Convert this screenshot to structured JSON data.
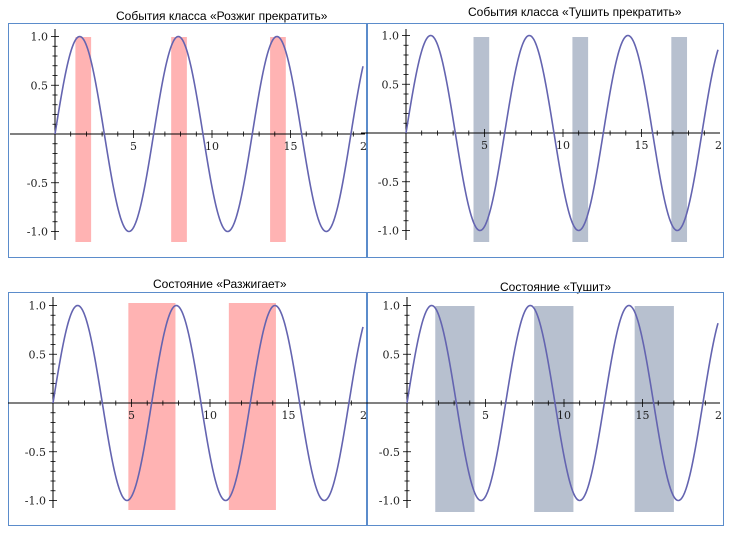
{
  "colors": {
    "curve": "#6464b0",
    "pink": "#ff9999",
    "gray": "#99a5bb",
    "frame": "#5b8ccb",
    "axis": "#000000"
  },
  "chart_data": [
    {
      "type": "line",
      "title": "События класса «Розжиг прекратить»",
      "function": "sin(x)",
      "xlim": [
        0,
        20
      ],
      "ylim": [
        -1.0,
        1.0
      ],
      "xticks": [
        "5",
        "10",
        "15",
        "2"
      ],
      "yticks": [
        "1.0",
        "0.5",
        "-0.5",
        "-1.0"
      ],
      "bands": [
        {
          "x0": 1.3,
          "x1": 2.3,
          "color": "pink"
        },
        {
          "x0": 7.4,
          "x1": 8.4,
          "color": "pink"
        },
        {
          "x0": 13.7,
          "x1": 14.7,
          "color": "pink"
        }
      ]
    },
    {
      "type": "line",
      "title": "События класса «Тушить прекратить»",
      "function": "sin(x)",
      "xlim": [
        0,
        20
      ],
      "ylim": [
        -1.0,
        1.0
      ],
      "xticks": [
        "5",
        "10",
        "15",
        "2"
      ],
      "yticks": [
        "1.0",
        "0.5",
        "-0.5",
        "-1.0"
      ],
      "bands": [
        {
          "x0": 4.3,
          "x1": 5.3,
          "color": "gray"
        },
        {
          "x0": 10.6,
          "x1": 11.6,
          "color": "gray"
        },
        {
          "x0": 16.9,
          "x1": 17.9,
          "color": "gray"
        }
      ]
    },
    {
      "type": "line",
      "title": "Состояние «Разжигает»",
      "function": "sin(x)",
      "xlim": [
        0,
        20
      ],
      "ylim": [
        -1.0,
        1.0
      ],
      "xticks": [
        "5",
        "10",
        "15",
        "2"
      ],
      "yticks": [
        "1.0",
        "0.5",
        "-0.5",
        "-1.0"
      ],
      "bands": [
        {
          "x0": 4.8,
          "x1": 7.8,
          "color": "pink"
        },
        {
          "x0": 11.2,
          "x1": 14.2,
          "color": "pink"
        }
      ]
    },
    {
      "type": "line",
      "title": "Состояние «Тушит»",
      "function": "sin(x)",
      "xlim": [
        0,
        20
      ],
      "ylim": [
        -1.0,
        1.0
      ],
      "xticks": [
        "5",
        "10",
        "15",
        "2"
      ],
      "yticks": [
        "1.0",
        "0.5",
        "-0.5",
        "-1.0"
      ],
      "bands": [
        {
          "x0": 1.8,
          "x1": 4.3,
          "color": "gray"
        },
        {
          "x0": 8.1,
          "x1": 10.6,
          "color": "gray"
        },
        {
          "x0": 14.5,
          "x1": 17.0,
          "color": "gray"
        }
      ]
    }
  ]
}
